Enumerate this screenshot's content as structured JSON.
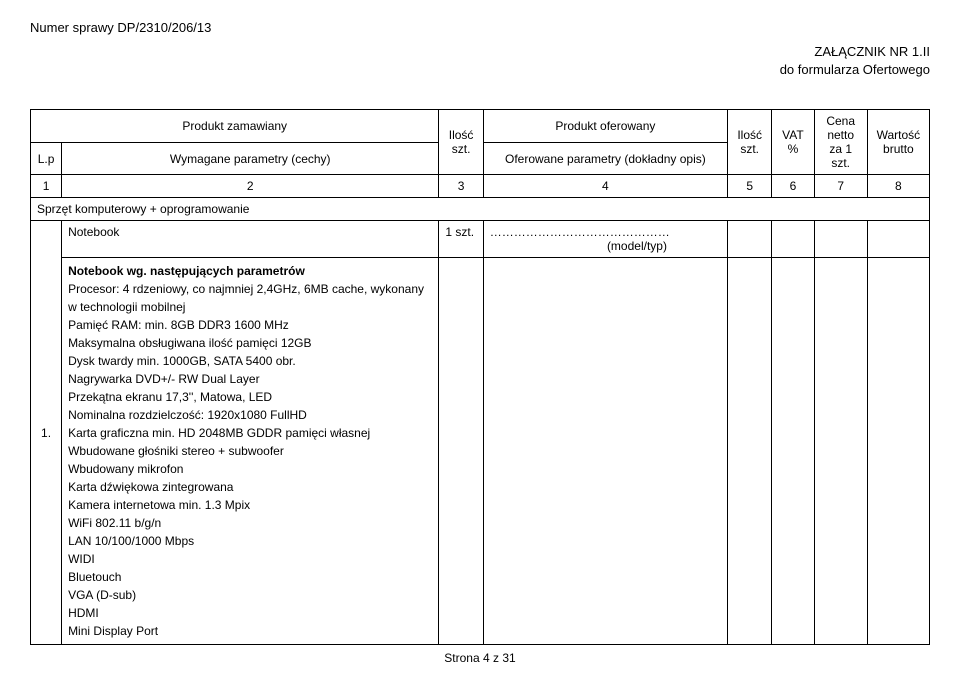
{
  "case_number": "Numer sprawy DP/2310/206/13",
  "attachment": {
    "line1": "ZAŁĄCZNIK NR 1.II",
    "line2": "do formularza Ofertowego"
  },
  "header": {
    "produkt_zamawiany": "Produkt zamawiany",
    "produkt_oferowany": "Produkt oferowany",
    "lp": "L.p",
    "wymagane": "Wymagane parametry (cechy)",
    "ilosc1": "Ilość szt.",
    "oferowane": "Oferowane parametry (dokładny opis)",
    "ilosc2": "Ilość szt.",
    "vat": "VAT %",
    "cena": "Cena netto za 1 szt.",
    "wartosc": "Wartość brutto"
  },
  "numrow": {
    "c1": "1",
    "c2": "2",
    "c3": "3",
    "c4": "4",
    "c5": "5",
    "c6": "6",
    "c7": "7",
    "c8": "8"
  },
  "section_title": "Sprzęt komputerowy + oprogramowanie",
  "row1": {
    "lp": "1.",
    "notebook_title": "Notebook",
    "qty": "1 szt.",
    "model_placeholder": "……………………………………… (model/typ)",
    "subtitle": "Notebook wg. następujących parametrów",
    "spec01": "Procesor: 4 rdzeniowy, co najmniej 2,4GHz, 6MB cache, wykonany w technologii mobilnej",
    "spec02": "Pamięć RAM: min. 8GB DDR3 1600 MHz",
    "spec03": "Maksymalna obsługiwana ilość pamięci 12GB",
    "spec04": "Dysk twardy min. 1000GB, SATA 5400 obr.",
    "spec05": "Nagrywarka DVD+/- RW Dual Layer",
    "spec06": "Przekątna ekranu 17,3'', Matowa, LED",
    "spec07": "Nominalna rozdzielczość: 1920x1080 FullHD",
    "spec08": "Karta graficzna min. HD 2048MB GDDR pamięci własnej",
    "spec09": "Wbudowane głośniki stereo + subwoofer",
    "spec10": "Wbudowany mikrofon",
    "spec11": "Karta dźwiękowa zintegrowana",
    "spec12": "Kamera internetowa min. 1.3 Mpix",
    "spec13": "WiFi 802.11 b/g/n",
    "spec14": "LAN 10/100/1000 Mbps",
    "spec15": "WIDI",
    "spec16": "Bluetouch",
    "spec17": "VGA (D-sub)",
    "spec18": "HDMI",
    "spec19": "Mini Display Port"
  },
  "footer": "Strona 4 z 31"
}
